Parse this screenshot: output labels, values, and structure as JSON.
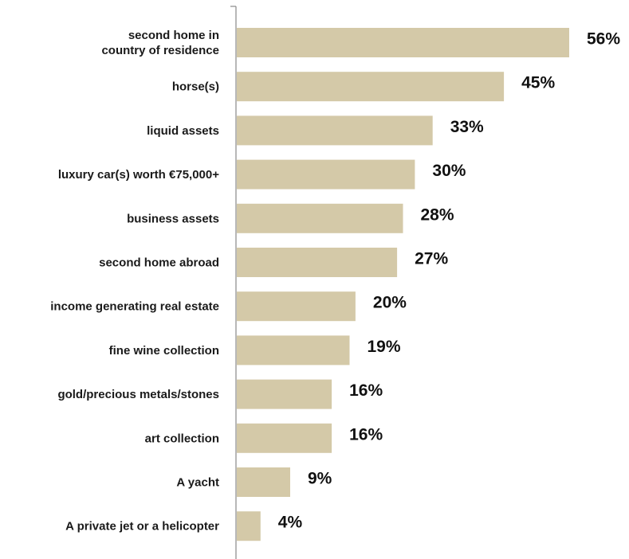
{
  "chart_data": {
    "type": "bar",
    "orientation": "horizontal",
    "categories": [
      "second home in country of residence",
      "horse(s)",
      "liquid assets",
      "luxury car(s) worth €75,000+",
      "business assets",
      "second home abroad",
      "income generating real estate",
      "fine wine collection",
      "gold/precious metals/stones",
      "art collection",
      "A yacht",
      "A private jet or a helicopter"
    ],
    "category_lines": [
      [
        "second home in",
        "country of residence"
      ],
      [
        "horse(s)"
      ],
      [
        "liquid assets"
      ],
      [
        "luxury car(s) worth €75,000+"
      ],
      [
        "business assets"
      ],
      [
        "second home abroad"
      ],
      [
        "income generating real estate"
      ],
      [
        "fine wine collection"
      ],
      [
        "gold/precious metals/stones"
      ],
      [
        "art collection"
      ],
      [
        "A yacht"
      ],
      [
        "A private jet or a helicopter"
      ]
    ],
    "values": [
      56,
      45,
      33,
      30,
      28,
      27,
      20,
      19,
      16,
      16,
      9,
      4
    ],
    "value_labels": [
      "56%",
      "45%",
      "33%",
      "30%",
      "28%",
      "27%",
      "20%",
      "19%",
      "16%",
      "16%",
      "9%",
      "4%"
    ],
    "unit": "%",
    "xlim": [
      0,
      56
    ],
    "grid": false,
    "legend": "none",
    "colors": {
      "bar": "#d4c9a8",
      "axis": "#888888",
      "category_text": "#1a1a1a",
      "value_text": "#111111"
    }
  }
}
